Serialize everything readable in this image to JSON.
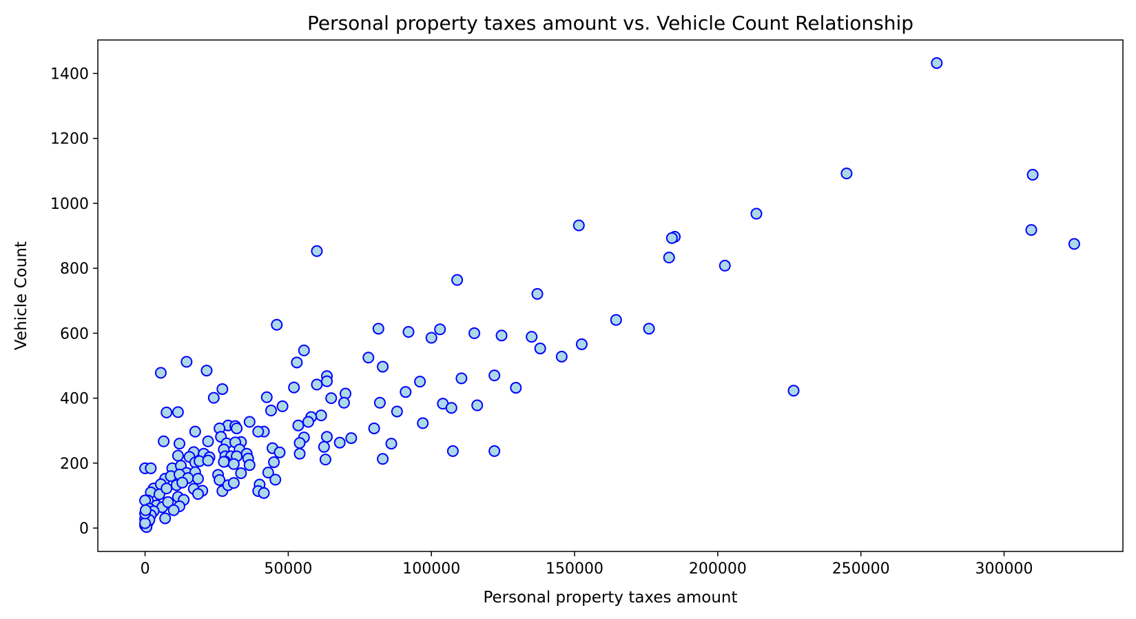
{
  "chart_data": {
    "type": "scatter",
    "title": "Personal property taxes amount vs. Vehicle Count Relationship",
    "xlabel": "Personal property taxes amount",
    "ylabel": "Vehicle Count",
    "xlim": [
      -16500,
      341500
    ],
    "ylim": [
      -72,
      1503
    ],
    "xticks": [
      0,
      50000,
      100000,
      150000,
      200000,
      250000,
      300000
    ],
    "xtick_labels": [
      "0",
      "50000",
      "100000",
      "150000",
      "200000",
      "250000",
      "300000"
    ],
    "yticks": [
      0,
      200,
      400,
      600,
      800,
      1000,
      1200,
      1400
    ],
    "ytick_labels": [
      "0",
      "200",
      "400",
      "600",
      "800",
      "1000",
      "1200",
      "1400"
    ],
    "grid": false,
    "marker": {
      "face_color": "#add8e6",
      "edge_color": "#0000ff"
    },
    "series": [
      {
        "points": [
          [
            276500,
            1432
          ],
          [
            245000,
            1092
          ],
          [
            310000,
            1088
          ],
          [
            213500,
            968
          ],
          [
            151500,
            932
          ],
          [
            309500,
            918
          ],
          [
            324500,
            875
          ],
          [
            185000,
            897
          ],
          [
            184000,
            893
          ],
          [
            183000,
            833
          ],
          [
            60000,
            853
          ],
          [
            202500,
            808
          ],
          [
            109000,
            764
          ],
          [
            137000,
            721
          ],
          [
            164500,
            641
          ],
          [
            46000,
            626
          ],
          [
            176000,
            614
          ],
          [
            81500,
            614
          ],
          [
            103000,
            612
          ],
          [
            92000,
            604
          ],
          [
            115000,
            600
          ],
          [
            124500,
            593
          ],
          [
            135000,
            589
          ],
          [
            100000,
            586
          ],
          [
            152500,
            566
          ],
          [
            138000,
            553
          ],
          [
            55500,
            547
          ],
          [
            145500,
            528
          ],
          [
            78000,
            525
          ],
          [
            14500,
            512
          ],
          [
            53000,
            510
          ],
          [
            83000,
            497
          ],
          [
            21500,
            485
          ],
          [
            5500,
            478
          ],
          [
            63500,
            468
          ],
          [
            122000,
            470
          ],
          [
            110500,
            461
          ],
          [
            63500,
            452
          ],
          [
            96000,
            451
          ],
          [
            60000,
            442
          ],
          [
            52000,
            433
          ],
          [
            129500,
            432
          ],
          [
            27000,
            428
          ],
          [
            226500,
            423
          ],
          [
            91000,
            419
          ],
          [
            70000,
            414
          ],
          [
            42500,
            403
          ],
          [
            24000,
            401
          ],
          [
            65000,
            400
          ],
          [
            69500,
            386
          ],
          [
            82000,
            386
          ],
          [
            104000,
            383
          ],
          [
            116000,
            378
          ],
          [
            48000,
            375
          ],
          [
            107000,
            370
          ],
          [
            44000,
            362
          ],
          [
            88000,
            359
          ],
          [
            7500,
            356
          ],
          [
            11500,
            357
          ],
          [
            61500,
            347
          ],
          [
            58000,
            342
          ],
          [
            57000,
            327
          ],
          [
            97000,
            323
          ],
          [
            36500,
            327
          ],
          [
            53500,
            316
          ],
          [
            29000,
            316
          ],
          [
            31500,
            314
          ],
          [
            32000,
            307
          ],
          [
            26000,
            307
          ],
          [
            80000,
            307
          ],
          [
            41500,
            297
          ],
          [
            39500,
            297
          ],
          [
            17500,
            297
          ],
          [
            55500,
            279
          ],
          [
            72000,
            277
          ],
          [
            63500,
            281
          ],
          [
            26500,
            281
          ],
          [
            68000,
            263
          ],
          [
            86000,
            260
          ],
          [
            54000,
            262
          ],
          [
            6500,
            267
          ],
          [
            22000,
            267
          ],
          [
            12000,
            260
          ],
          [
            28500,
            261
          ],
          [
            33500,
            265
          ],
          [
            31500,
            264
          ],
          [
            62500,
            250
          ],
          [
            44500,
            246
          ],
          [
            27500,
            242
          ],
          [
            17000,
            234
          ],
          [
            33000,
            242
          ],
          [
            47000,
            233
          ],
          [
            35500,
            229
          ],
          [
            107500,
            237
          ],
          [
            122000,
            237
          ],
          [
            54000,
            229
          ],
          [
            11500,
            223
          ],
          [
            15500,
            219
          ],
          [
            20500,
            229
          ],
          [
            22500,
            218
          ],
          [
            28000,
            221
          ],
          [
            30000,
            221
          ],
          [
            32000,
            221
          ],
          [
            36000,
            214
          ],
          [
            63000,
            211
          ],
          [
            83000,
            213
          ],
          [
            45000,
            203
          ],
          [
            17500,
            202
          ],
          [
            19000,
            206
          ],
          [
            22000,
            208
          ],
          [
            28000,
            205
          ],
          [
            0,
            184
          ],
          [
            2000,
            184
          ],
          [
            9500,
            184
          ],
          [
            12500,
            192
          ],
          [
            27500,
            204
          ],
          [
            31000,
            197
          ],
          [
            36500,
            194
          ],
          [
            14500,
            170
          ],
          [
            17500,
            172
          ],
          [
            25500,
            164
          ],
          [
            33500,
            169
          ],
          [
            43000,
            171
          ],
          [
            7000,
            152
          ],
          [
            9000,
            160
          ],
          [
            12000,
            165
          ],
          [
            15000,
            154
          ],
          [
            18500,
            152
          ],
          [
            26000,
            148
          ],
          [
            45500,
            149
          ],
          [
            3000,
            122
          ],
          [
            5500,
            135
          ],
          [
            11000,
            132
          ],
          [
            13000,
            140
          ],
          [
            17000,
            121
          ],
          [
            20000,
            115
          ],
          [
            27000,
            114
          ],
          [
            29000,
            132
          ],
          [
            31000,
            139
          ],
          [
            40000,
            134
          ],
          [
            39500,
            114
          ],
          [
            41500,
            108
          ],
          [
            2000,
            110
          ],
          [
            5000,
            104
          ],
          [
            7500,
            122
          ],
          [
            11500,
            96
          ],
          [
            13500,
            87
          ],
          [
            18500,
            105
          ],
          [
            1000,
            85
          ],
          [
            4000,
            70
          ],
          [
            6000,
            64
          ],
          [
            8000,
            80
          ],
          [
            12000,
            67
          ],
          [
            10000,
            55
          ],
          [
            7000,
            30
          ],
          [
            0,
            85
          ],
          [
            1500,
            60
          ],
          [
            3000,
            52
          ],
          [
            500,
            40
          ],
          [
            1000,
            30
          ],
          [
            2000,
            40
          ],
          [
            500,
            22
          ],
          [
            1000,
            18
          ],
          [
            0,
            8
          ],
          [
            500,
            3
          ],
          [
            0,
            28
          ],
          [
            1500,
            25
          ],
          [
            0,
            15
          ],
          [
            0,
            45
          ],
          [
            200,
            55
          ]
        ]
      }
    ]
  }
}
